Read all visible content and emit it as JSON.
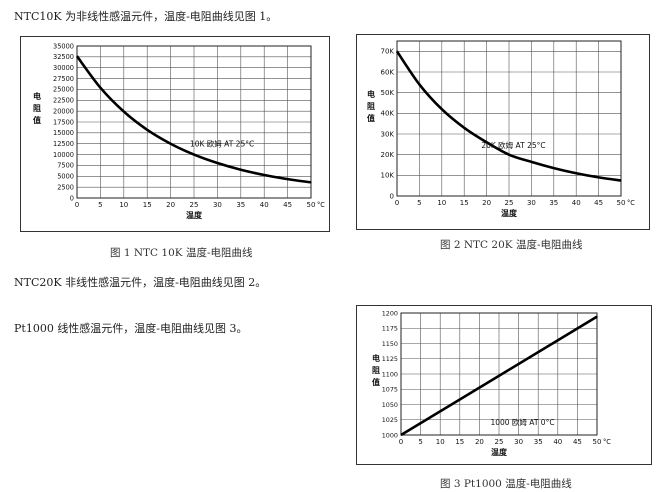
{
  "paragraphs": {
    "p1": "NTC10K 为非线性感温元件，温度-电阻曲线见图 1。",
    "p2": "NTC20K 非线性感温元件，温度-电阻曲线见图 2。",
    "p3": "Pt1000 线性感温元件，温度-电阻曲线见图 3。"
  },
  "captions": {
    "fig1": "图 1 NTC 10K 温度-电阻曲线",
    "fig2": "图 2 NTC 20K 温度-电阻曲线",
    "fig3": "图 3    Pt1000 温度-电阻曲线"
  },
  "chart_data": [
    {
      "type": "line",
      "ylabel": "电阻值",
      "xlabel": "温度",
      "annotation": "10K 欧姆 AT 25°C",
      "x_unit": "°C",
      "x": [
        0,
        5,
        10,
        15,
        20,
        25,
        30,
        35,
        40,
        45,
        50
      ],
      "xlim": [
        0,
        50
      ],
      "xticks": [
        "0",
        "5",
        "10",
        "15",
        "20",
        "25",
        "30",
        "35",
        "40",
        "45",
        "50"
      ],
      "ylim": [
        0,
        35000
      ],
      "yticks": [
        "0",
        "2500",
        "5000",
        "7500",
        "10000",
        "12500",
        "15000",
        "17500",
        "20000",
        "22500",
        "25000",
        "27500",
        "30000",
        "32500",
        "35000"
      ],
      "grid": true,
      "series": [
        {
          "values": [
            32650,
            25400,
            19900,
            15700,
            12500,
            10000,
            8050,
            6500,
            5300,
            4350,
            3600
          ]
        }
      ]
    },
    {
      "type": "line",
      "ylabel": "电阻值",
      "xlabel": "温度",
      "annotation": "20K 欧姆 AT 25°C",
      "x_unit": "°C",
      "x": [
        0,
        5,
        10,
        15,
        20,
        25,
        30,
        35,
        40,
        45,
        50
      ],
      "xlim": [
        0,
        50
      ],
      "xticks": [
        "0",
        "5",
        "10",
        "15",
        "20",
        "25",
        "30",
        "35",
        "40",
        "45",
        "50"
      ],
      "ylim": [
        0,
        75
      ],
      "yticks": [
        "0",
        "10K",
        "20K",
        "30K",
        "40K",
        "50K",
        "60K",
        "70K"
      ],
      "grid": true,
      "series": [
        {
          "values": [
            70,
            54,
            42,
            33,
            26,
            20,
            16.5,
            13.5,
            11,
            9,
            7.5
          ]
        }
      ]
    },
    {
      "type": "line",
      "ylabel": "电阻值",
      "xlabel": "温度",
      "annotation": "1000 欧姆 AT 0°C",
      "x_unit": "°C",
      "x": [
        0,
        50
      ],
      "xlim": [
        0,
        50
      ],
      "xticks": [
        "0",
        "5",
        "10",
        "15",
        "20",
        "25",
        "30",
        "35",
        "40",
        "45",
        "50"
      ],
      "ylim": [
        1000,
        1200
      ],
      "yticks": [
        "1000",
        "1025",
        "1050",
        "1075",
        "1100",
        "1125",
        "1150",
        "1175",
        "1200"
      ],
      "grid": true,
      "series": [
        {
          "values": [
            1000,
            1194
          ]
        }
      ]
    }
  ]
}
